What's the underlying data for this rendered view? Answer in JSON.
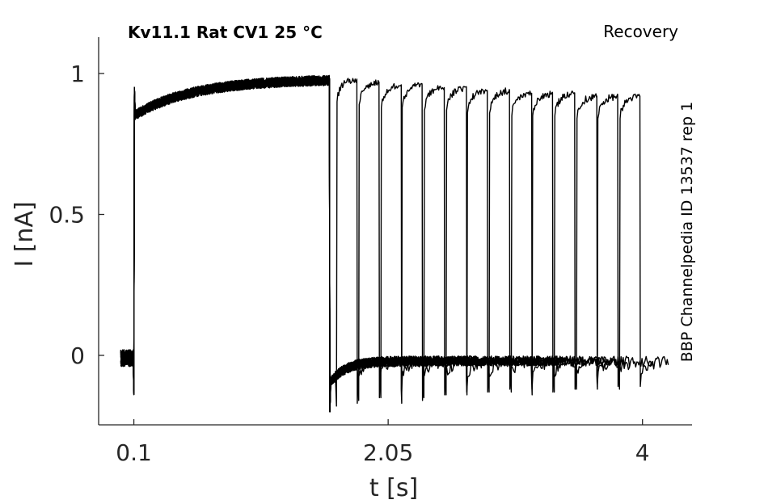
{
  "chart_data": {
    "type": "line",
    "title": "Kv11.1  Rat  CV1  25 °C",
    "protocol_label": "Recovery",
    "source_label": "BBP Channelpedia ID 13537 rep 1",
    "xlabel": "t [s]",
    "ylabel": "I [nA]",
    "xlim": [
      -0.17,
      4.38
    ],
    "ylim": [
      -0.25,
      1.13
    ],
    "x_ticks": [
      0.1,
      2.05,
      4
    ],
    "x_tick_labels": [
      "0.1",
      "2.05",
      "4"
    ],
    "y_ticks": [
      0,
      0.5,
      1
    ],
    "y_tick_labels": [
      "0",
      "0.5",
      "1"
    ],
    "grid": false,
    "line_color": "#000000",
    "hold_start": 0.0,
    "step_on": 0.1,
    "prepulse_end": 1.6,
    "prepulse_peak": 0.98,
    "rest_level": -0.02,
    "trailing_noise_end": 4.2,
    "recovery_intervals": [
      0.05,
      0.22,
      0.39,
      0.55,
      0.72,
      0.89,
      1.05,
      1.22,
      1.39,
      1.55,
      1.72,
      1.89,
      2.05,
      2.22
    ],
    "recovery_pulse_duration": 0.16,
    "recovery_peak_levels": [
      0.98,
      0.97,
      0.96,
      0.96,
      0.95,
      0.95,
      0.94,
      0.94,
      0.93,
      0.93,
      0.93,
      0.92,
      0.92,
      0.92
    ],
    "recovery_tail_depths": [
      -0.18,
      -0.16,
      -0.15,
      -0.17,
      -0.15,
      -0.14,
      -0.14,
      -0.13,
      -0.13,
      -0.14,
      -0.13,
      -0.12,
      -0.12,
      -0.12
    ]
  }
}
